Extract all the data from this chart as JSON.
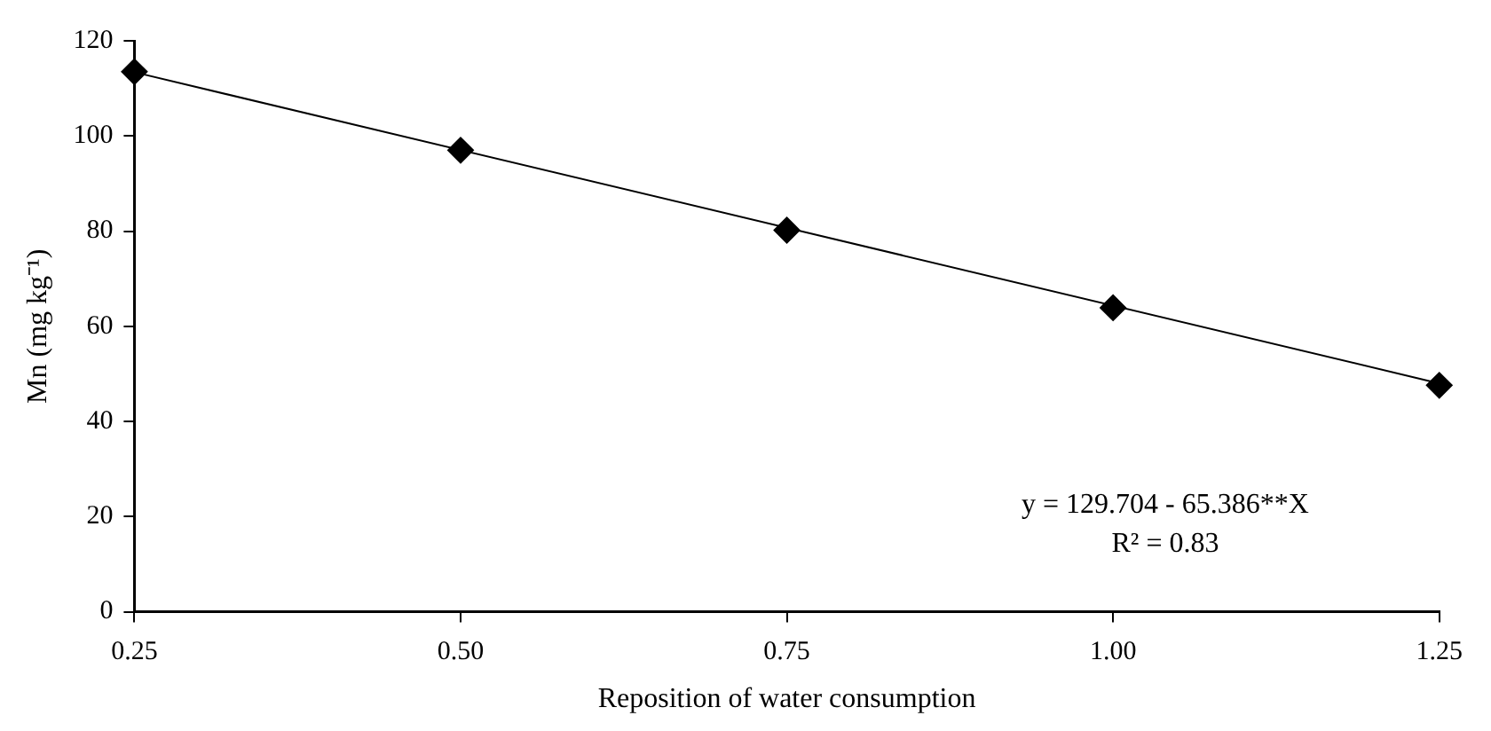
{
  "chart_data": {
    "type": "scatter",
    "xlabel": "Reposition of water consumption",
    "ylabel": "Mn (mg kg⁻¹)",
    "x": [
      0.25,
      0.5,
      0.75,
      1.0,
      1.25
    ],
    "series": [
      {
        "type": "scatter",
        "color": "#000000",
        "marker": "diamond",
        "values": [
          113.5,
          97.0,
          80.2,
          63.9,
          47.6
        ]
      },
      {
        "type": "line",
        "color": "#000000",
        "marker": "none",
        "x": [
          0.25,
          1.25
        ],
        "values": [
          113.4,
          48.0
        ]
      }
    ],
    "xlim": [
      0.25,
      1.25
    ],
    "xticks": [
      {
        "value": 0.25,
        "label": "0.25"
      },
      {
        "value": 0.5,
        "label": "0.50"
      },
      {
        "value": 0.75,
        "label": "0.75"
      },
      {
        "value": 1.0,
        "label": "1.00"
      },
      {
        "value": 1.25,
        "label": "1.25"
      }
    ],
    "ylim": [
      0,
      120
    ],
    "yticks": [
      0,
      20,
      40,
      60,
      80,
      100,
      120
    ],
    "grid": false,
    "legend": false,
    "annotations": [
      "y = 129.704 - 65.386**X",
      "R² = 0.83"
    ]
  }
}
